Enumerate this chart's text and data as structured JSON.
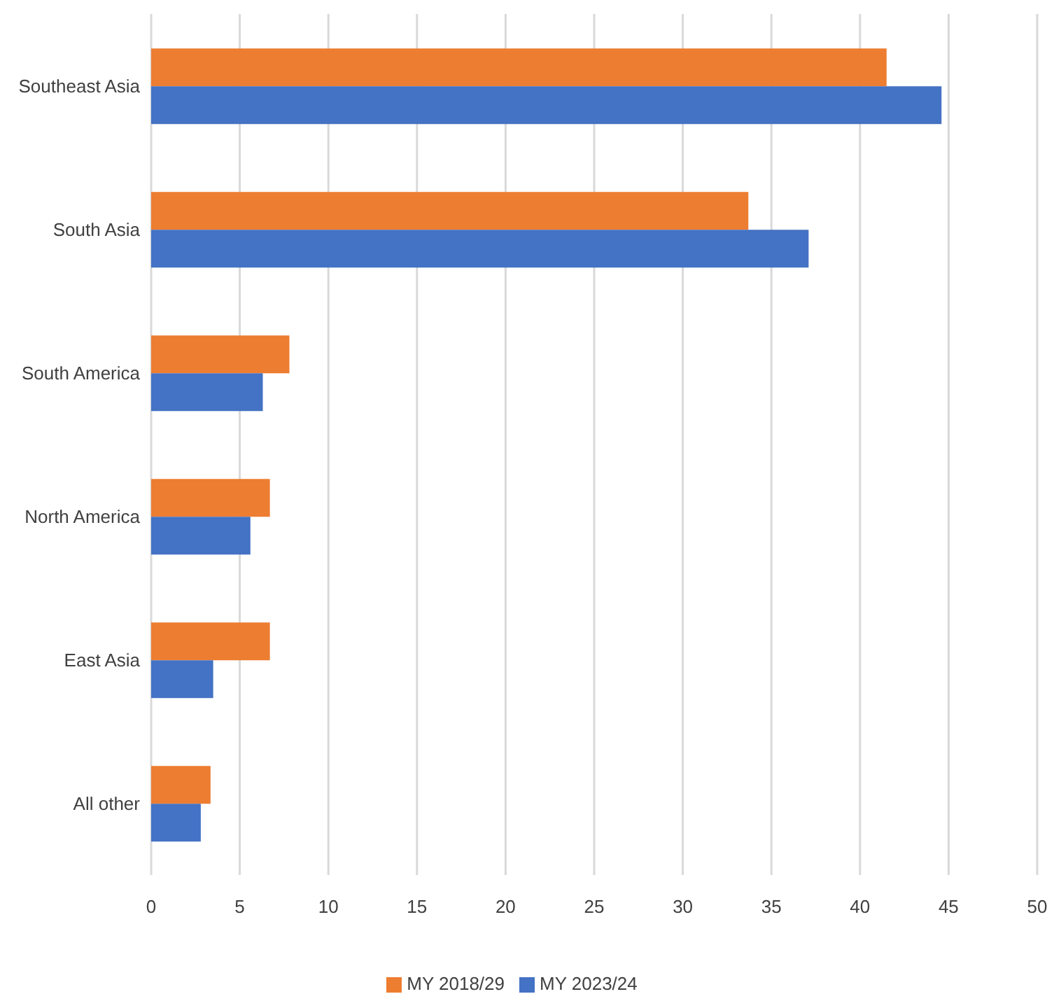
{
  "chart_data": {
    "type": "bar",
    "orientation": "horizontal",
    "categories": [
      "Southeast Asia",
      "South Asia",
      "South America",
      "North America",
      "East Asia",
      "All other"
    ],
    "series": [
      {
        "name": "MY 2018/29",
        "color": "#ed7d31",
        "values": [
          41.5,
          33.7,
          7.8,
          6.7,
          6.7,
          3.35
        ]
      },
      {
        "name": "MY 2023/24",
        "color": "#4472c4",
        "values": [
          44.6,
          37.1,
          6.3,
          5.6,
          3.5,
          2.8
        ]
      }
    ],
    "xlim": [
      0,
      50
    ],
    "xticks": [
      0,
      5,
      10,
      15,
      20,
      25,
      30,
      35,
      40,
      45,
      50
    ],
    "grid": "x",
    "legend": "bottom"
  }
}
